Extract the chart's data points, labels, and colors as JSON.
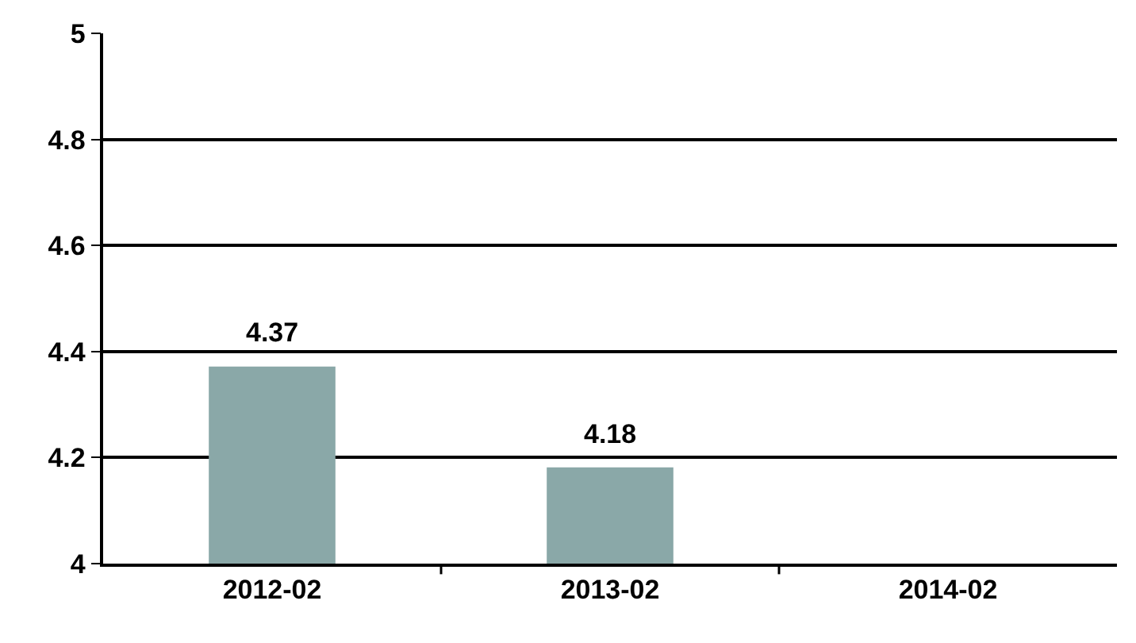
{
  "chart_data": {
    "type": "bar",
    "categories": [
      "2012-02",
      "2013-02",
      "2014-02"
    ],
    "values": [
      4.37,
      4.18,
      null
    ],
    "color": "#8aa8a8",
    "ylim": [
      4,
      5
    ],
    "yticks": [
      4,
      4.2,
      4.4,
      4.6,
      4.8,
      5
    ],
    "grid": "y",
    "data_labels": true
  }
}
